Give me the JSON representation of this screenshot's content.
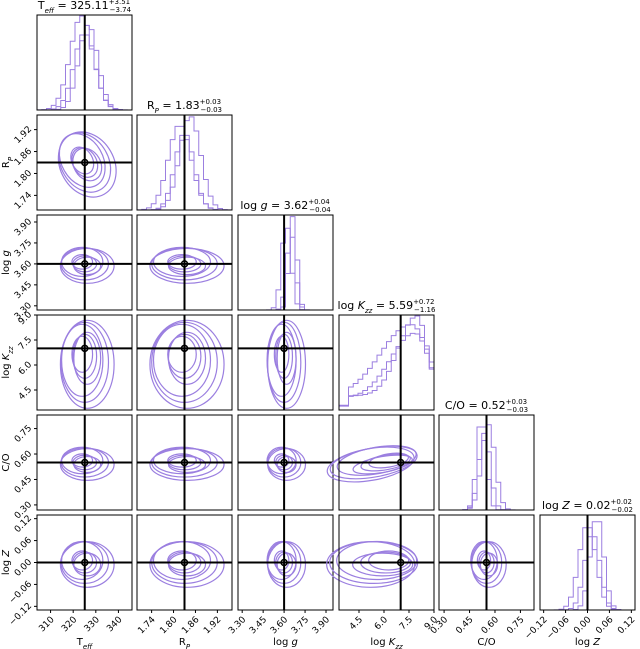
{
  "chart_data": {
    "type": "corner",
    "series_color": "#9b7fe0",
    "truth_color": "#000000",
    "parameters": [
      {
        "key": "teff",
        "label": "T",
        "sub": "eff",
        "title_name": "T",
        "title_sub": "eff",
        "value_text": "325.11",
        "plus_text": "+3.51",
        "minus_text": "−3.74",
        "median": 325.11,
        "plus": 3.51,
        "minus": 3.74,
        "truth": 325.11,
        "range": [
          304,
          346
        ],
        "ticks": [
          310,
          320,
          330,
          340
        ]
      },
      {
        "key": "rp",
        "label": "R",
        "sub": "P",
        "title_name": "R",
        "title_sub": "P",
        "value_text": "1.83",
        "plus_text": "+0.03",
        "minus_text": "−0.03",
        "median": 1.83,
        "plus": 0.03,
        "minus": 0.03,
        "truth": 1.83,
        "range": [
          1.7,
          1.96
        ],
        "ticks": [
          1.74,
          1.8,
          1.86,
          1.92
        ]
      },
      {
        "key": "logg",
        "label": "log g",
        "sub": "",
        "title_name": "log g",
        "title_sub": "",
        "value_text": "3.62",
        "plus_text": "+0.04",
        "minus_text": "−0.04",
        "median": 3.62,
        "plus": 0.04,
        "minus": 0.04,
        "truth": 3.6,
        "range": [
          3.27,
          3.95
        ],
        "ticks": [
          3.3,
          3.45,
          3.6,
          3.75,
          3.9
        ]
      },
      {
        "key": "logkzz",
        "label": "log K",
        "sub": "zz",
        "title_name": "log K",
        "title_sub": "zz",
        "value_text": "5.59",
        "plus_text": "+0.72",
        "minus_text": "−1.16",
        "median": 5.59,
        "plus": 0.72,
        "minus": 1.16,
        "truth": 7.0,
        "range": [
          3.3,
          9.0
        ],
        "ticks": [
          4.5,
          6.0,
          7.5,
          9.0
        ]
      },
      {
        "key": "co",
        "label": "C/O",
        "sub": "",
        "title_name": "C/O",
        "title_sub": "",
        "value_text": "0.52",
        "plus_text": "+0.03",
        "minus_text": "−0.03",
        "median": 0.52,
        "plus": 0.03,
        "minus": 0.03,
        "truth": 0.55,
        "range": [
          0.27,
          0.83
        ],
        "ticks": [
          0.3,
          0.45,
          0.6,
          0.75
        ]
      },
      {
        "key": "logz",
        "label": "log Z",
        "sub": "",
        "title_name": "log Z",
        "title_sub": "",
        "value_text": "0.02",
        "plus_text": "+0.02",
        "minus_text": "−0.02",
        "median": 0.02,
        "plus": 0.02,
        "minus": 0.02,
        "truth": 0.0,
        "range": [
          -0.13,
          0.13
        ],
        "ticks": [
          -0.12,
          -0.06,
          0.0,
          0.06,
          0.12
        ]
      }
    ],
    "y_ticks": {
      "rp": [
        1.74,
        1.8,
        1.86,
        1.92
      ],
      "logg": [
        3.3,
        3.45,
        3.6,
        3.75,
        3.9
      ],
      "logkzz": [
        4.5,
        6.0,
        7.5,
        9.0
      ],
      "co": [
        0.3,
        0.45,
        0.6,
        0.75
      ],
      "logz": [
        -0.12,
        -0.06,
        0.0,
        0.06,
        0.12
      ]
    }
  }
}
